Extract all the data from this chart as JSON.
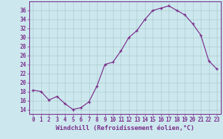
{
  "x": [
    0,
    1,
    2,
    3,
    4,
    5,
    6,
    7,
    8,
    9,
    10,
    11,
    12,
    13,
    14,
    15,
    16,
    17,
    18,
    19,
    20,
    21,
    22,
    23
  ],
  "y": [
    18.3,
    18.0,
    16.1,
    16.9,
    15.3,
    14.0,
    14.4,
    15.7,
    19.2,
    24.0,
    24.5,
    27.0,
    30.0,
    31.5,
    34.0,
    36.0,
    36.5,
    37.0,
    36.0,
    35.0,
    33.0,
    30.5,
    24.8,
    23.0
  ],
  "line_color": "#7b2d8b",
  "marker": "+",
  "bg_color": "#cce8ee",
  "grid_color": "#aacccc",
  "xlabel": "Windchill (Refroidissement éolien,°C)",
  "ylim": [
    13,
    38
  ],
  "xlim": [
    -0.5,
    23.5
  ],
  "yticks": [
    14,
    16,
    18,
    20,
    22,
    24,
    26,
    28,
    30,
    32,
    34,
    36
  ],
  "xticks": [
    0,
    1,
    2,
    3,
    4,
    5,
    6,
    7,
    8,
    9,
    10,
    11,
    12,
    13,
    14,
    15,
    16,
    17,
    18,
    19,
    20,
    21,
    22,
    23
  ],
  "text_color": "#7b2d8b",
  "tick_fontsize": 5.5,
  "label_fontsize": 6.5,
  "linewidth": 0.9,
  "markersize": 3.0
}
